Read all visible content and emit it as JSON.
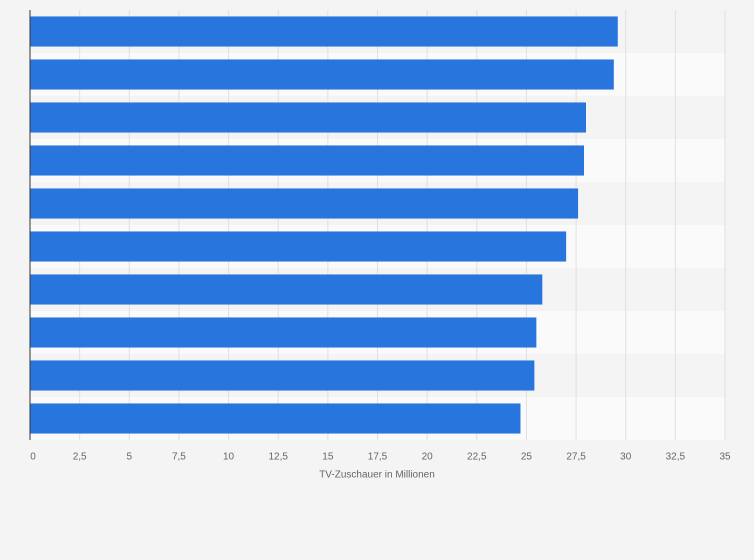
{
  "chart_data": {
    "type": "barh",
    "categories": [
      null,
      null,
      null,
      null,
      null,
      null,
      null,
      null,
      null,
      null
    ],
    "values": [
      29.6,
      29.4,
      28.0,
      27.9,
      27.6,
      27.0,
      25.8,
      25.5,
      25.4,
      24.7
    ],
    "color": "#2876dd",
    "xlabel": "TV-Zuschauer in Millionen",
    "xlim": [
      0,
      35
    ],
    "xticks": [
      0,
      {
        "value": 2.5,
        "label": "2,5"
      },
      5,
      {
        "value": 7.5,
        "label": "7,5"
      },
      10,
      {
        "value": 12.5,
        "label": "12,5"
      },
      15,
      {
        "value": 17.5,
        "label": "17,5"
      },
      20,
      {
        "value": 22.5,
        "label": "22,5"
      },
      25,
      {
        "value": 27.5,
        "label": "27,5"
      },
      30,
      {
        "value": 32.5,
        "label": "32,5"
      },
      35
    ],
    "grid": true
  }
}
